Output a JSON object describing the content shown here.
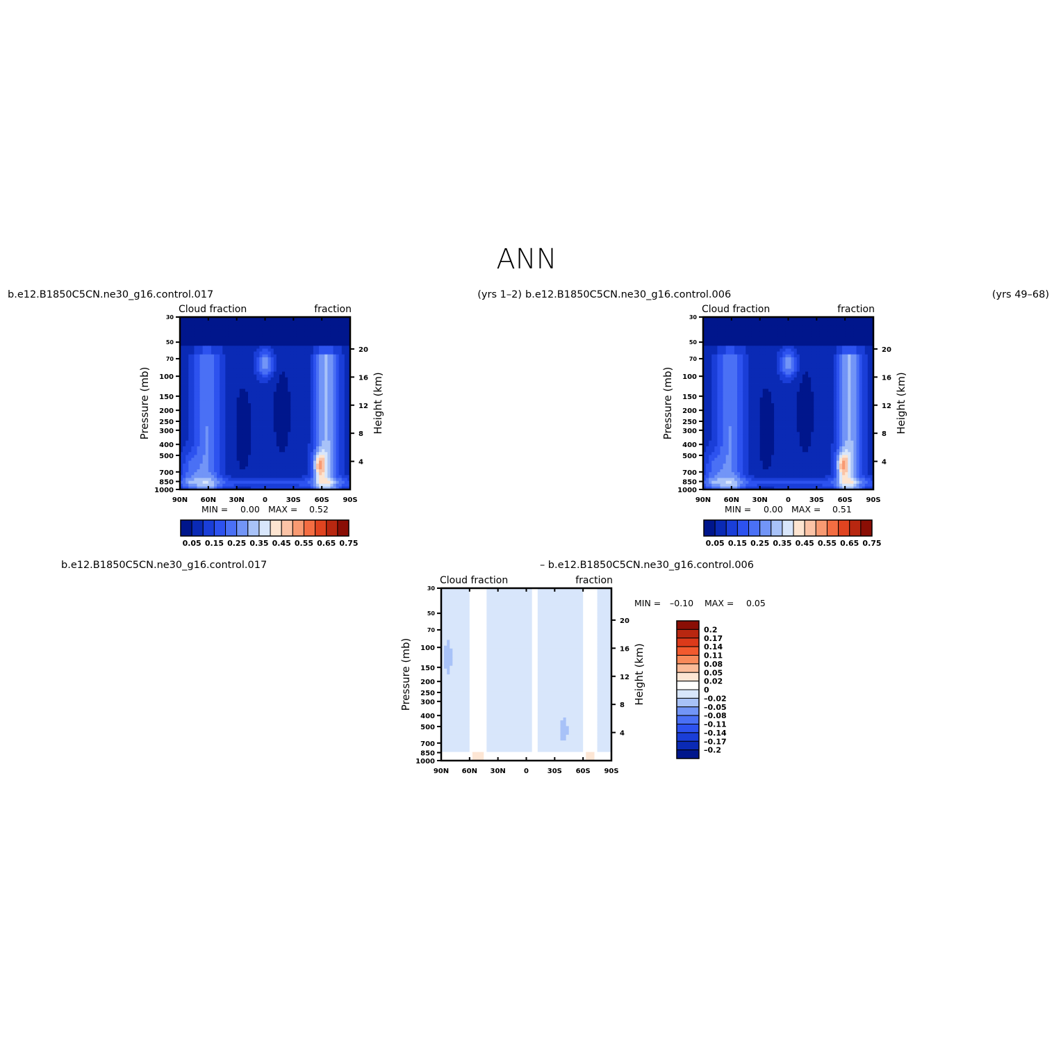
{
  "figure": {
    "title": "ANN"
  },
  "chart_data": [
    {
      "type": "heatmap",
      "left_title": "b.e12.B1850C5CN.ne30_g16.control.017",
      "right_title": "(yrs  1–2)",
      "subtitle_left": "Cloud fraction",
      "subtitle_right": "fraction",
      "xlabel": "",
      "ylabel": "Pressure  (mb)",
      "ylabel_right": "Height  (km)",
      "x_ticks": [
        "90N",
        "60N",
        "30N",
        "0",
        "30S",
        "60S",
        "90S"
      ],
      "y_ticks": [
        "30",
        "50",
        "70",
        "100",
        "150",
        "200",
        "250",
        "300",
        "400",
        "500",
        "700",
        "850",
        "1000"
      ],
      "y_ticks_right": [
        "20",
        "16",
        "12",
        "8",
        "4"
      ],
      "min_label": "MIN =",
      "min_value": "0.00",
      "max_label": "MAX =",
      "max_value": "0.52",
      "colorbar": {
        "orientation": "horizontal",
        "labels": [
          "0.05",
          "0.15",
          "0.25",
          "0.35",
          "0.45",
          "0.55",
          "0.65",
          "0.75"
        ],
        "levels": [
          0.05,
          0.1,
          0.15,
          0.2,
          0.25,
          0.3,
          0.35,
          0.4,
          0.45,
          0.5,
          0.55,
          0.6,
          0.65,
          0.7,
          0.75
        ]
      }
    },
    {
      "type": "heatmap",
      "left_title": "b.e12.B1850C5CN.ne30_g16.control.006",
      "right_title": "(yrs  49–68)",
      "subtitle_left": "Cloud fraction",
      "subtitle_right": "fraction",
      "xlabel": "",
      "ylabel": "Pressure  (mb)",
      "ylabel_right": "Height  (km)",
      "x_ticks": [
        "90N",
        "60N",
        "30N",
        "0",
        "30S",
        "60S",
        "90S"
      ],
      "y_ticks": [
        "30",
        "50",
        "70",
        "100",
        "150",
        "200",
        "250",
        "300",
        "400",
        "500",
        "700",
        "850",
        "1000"
      ],
      "y_ticks_right": [
        "20",
        "16",
        "12",
        "8",
        "4"
      ],
      "min_label": "MIN =",
      "min_value": "0.00",
      "max_label": "MAX =",
      "max_value": "0.51",
      "colorbar": {
        "orientation": "horizontal",
        "labels": [
          "0.05",
          "0.15",
          "0.25",
          "0.35",
          "0.45",
          "0.55",
          "0.65",
          "0.75"
        ],
        "levels": [
          0.05,
          0.1,
          0.15,
          0.2,
          0.25,
          0.3,
          0.35,
          0.4,
          0.45,
          0.5,
          0.55,
          0.6,
          0.65,
          0.7,
          0.75
        ]
      }
    },
    {
      "type": "heatmap",
      "left_title": "b.e12.B1850C5CN.ne30_g16.control.017",
      "right_title": "–  b.e12.B1850C5CN.ne30_g16.control.006",
      "subtitle_left": "Cloud fraction",
      "subtitle_right": "fraction",
      "xlabel": "",
      "ylabel": "Pressure  (mb)",
      "ylabel_right": "Height  (km)",
      "x_ticks": [
        "90N",
        "60N",
        "30N",
        "0",
        "30S",
        "60S",
        "90S"
      ],
      "y_ticks": [
        "30",
        "50",
        "70",
        "100",
        "150",
        "200",
        "250",
        "300",
        "400",
        "500",
        "700",
        "850",
        "1000"
      ],
      "y_ticks_right": [
        "20",
        "16",
        "12",
        "8",
        "4"
      ],
      "min_label": "MIN =",
      "min_value": "–0.10",
      "max_label": "MAX =",
      "max_value": "0.05",
      "colorbar": {
        "orientation": "vertical",
        "labels": [
          "0.2",
          "0.17",
          "0.14",
          "0.11",
          "0.08",
          "0.05",
          "0.02",
          "0",
          "–0.02",
          "–0.05",
          "–0.08",
          "–0.11",
          "–0.14",
          "–0.17",
          "–0.2"
        ],
        "levels": [
          0.2,
          0.17,
          0.14,
          0.11,
          0.08,
          0.05,
          0.02,
          0,
          -0.02,
          -0.05,
          -0.08,
          -0.11,
          -0.14,
          -0.17,
          -0.2
        ]
      }
    }
  ],
  "palettes": {
    "abs": [
      "#00168c",
      "#0a2ab5",
      "#1a3ed8",
      "#2d52ef",
      "#4a70f5",
      "#7295f7",
      "#a8c2f8",
      "#d8e6fb",
      "#fde4d0",
      "#fbc3a6",
      "#f89a72",
      "#f46d42",
      "#e04420",
      "#b82710",
      "#8a0e05"
    ],
    "diff": [
      "#8a0e05",
      "#b82710",
      "#dc3a1a",
      "#f25a2e",
      "#f88a5a",
      "#fbbb98",
      "#fde6d4",
      "#ffffff",
      "#d8e6fb",
      "#a8c2f8",
      "#7295f7",
      "#4a70f5",
      "#2d52ef",
      "#1a3ed8",
      "#0a2ab5",
      "#00168c"
    ]
  }
}
